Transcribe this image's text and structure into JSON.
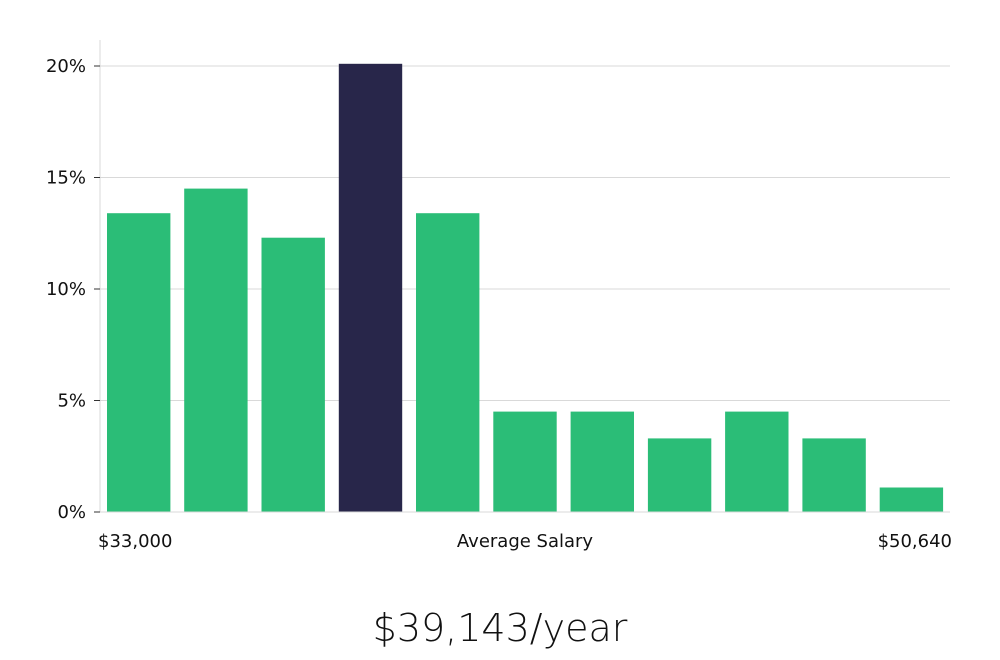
{
  "chart_data": {
    "type": "bar",
    "ylim": [
      0,
      21
    ],
    "yticks": [
      0,
      5,
      10,
      15,
      20
    ],
    "ytick_labels": [
      "0%",
      "5%",
      "10%",
      "15%",
      "20%"
    ],
    "values": [
      13.4,
      14.5,
      12.3,
      20.1,
      13.4,
      4.5,
      4.5,
      3.3,
      4.5,
      3.3,
      1.1
    ],
    "highlight_index": 3,
    "colors": {
      "bar": "#2bbd77",
      "highlight": "#28264a",
      "grid": "#d9d9d9"
    },
    "x_min_label": "$33,000",
    "x_center_label": "Average Salary",
    "x_max_label": "$50,640",
    "grid": true
  },
  "summary": {
    "average_salary_text": "$39,143/year"
  }
}
